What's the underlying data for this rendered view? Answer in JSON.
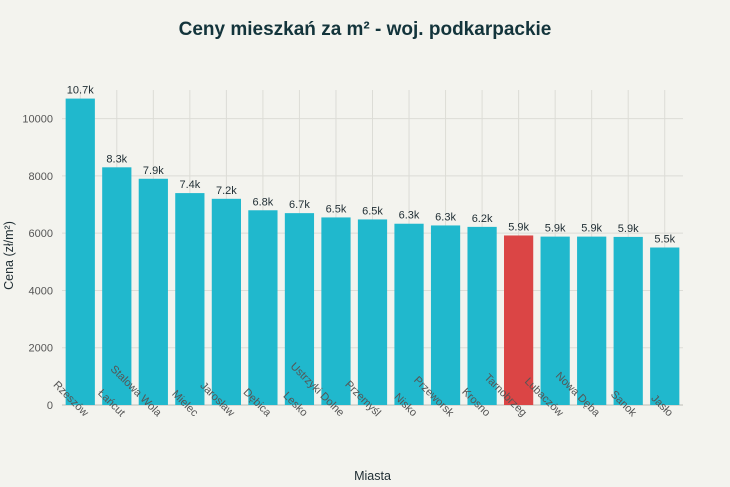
{
  "chart_data": {
    "type": "bar",
    "title": "Ceny mieszkań za m² - woj. podkarpackie",
    "xlabel": "Miasta",
    "ylabel": "Cena (zł/m²)",
    "ylim": [
      0,
      11000
    ],
    "yticks": [
      0,
      2000,
      4000,
      6000,
      8000,
      10000
    ],
    "grid": true,
    "categories": [
      "Rzeszów",
      "Łańcut",
      "Stalowa Wola",
      "Mielec",
      "Jarosław",
      "Dębica",
      "Lesko",
      "Ustrzyki Dolne",
      "Przemyśl",
      "Nisko",
      "Przeworsk",
      "Krosno",
      "Tarnobrzeg",
      "Lubaczów",
      "Nowa Dęba",
      "Sanok",
      "Jasło"
    ],
    "values": [
      10700,
      8300,
      7900,
      7400,
      7200,
      6800,
      6700,
      6550,
      6480,
      6330,
      6270,
      6220,
      5920,
      5880,
      5880,
      5870,
      5500
    ],
    "data_labels": [
      "10.7k",
      "8.3k",
      "7.9k",
      "7.4k",
      "7.2k",
      "6.8k",
      "6.7k",
      "6.5k",
      "6.5k",
      "6.3k",
      "6.3k",
      "6.2k",
      "5.9k",
      "5.9k",
      "5.9k",
      "5.9k",
      "5.5k"
    ],
    "highlight_index": 12,
    "colors": {
      "bar": "#20b8cd",
      "highlight": "#db4545",
      "grid": "#dcdcd6",
      "background": "#f3f3ee"
    }
  }
}
